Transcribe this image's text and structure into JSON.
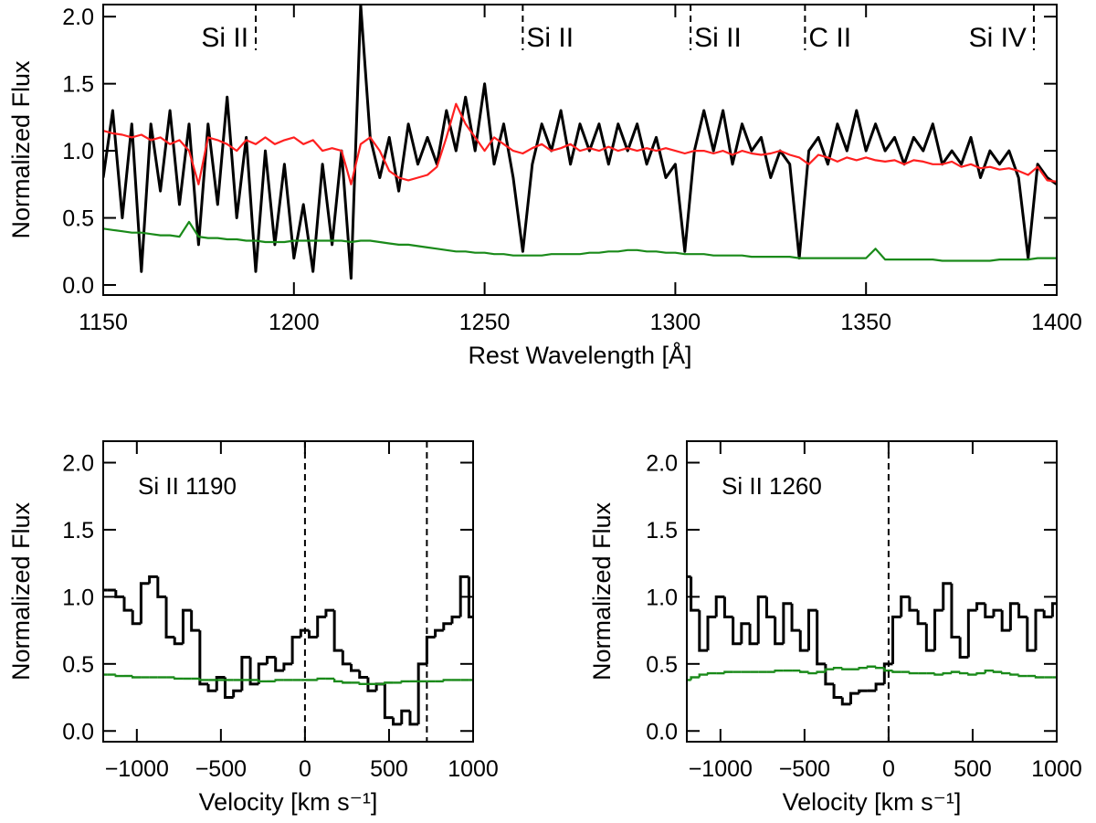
{
  "chart_data": [
    {
      "type": "line",
      "y_label": "Normalized Flux",
      "x_label": "Rest Wavelength [Å]",
      "xlim": [
        1150,
        1400
      ],
      "xticks": [
        1150,
        1200,
        1250,
        1300,
        1350,
        1400
      ],
      "ylim": [
        -0.075,
        2.09
      ],
      "yticks": [
        {
          "value": 0,
          "label": "0.0"
        },
        {
          "value": 0.5,
          "label": "0.5"
        },
        {
          "value": 1,
          "label": "1.0"
        },
        {
          "value": 1.5,
          "label": "1.5"
        },
        {
          "value": 2,
          "label": "2.0"
        }
      ],
      "lines": [
        {
          "x": 1190,
          "label": "Si II",
          "align": "left"
        },
        {
          "x": 1260,
          "label": "Si II",
          "align": "right"
        },
        {
          "x": 1304,
          "label": "Si II",
          "align": "right"
        },
        {
          "x": 1334,
          "label": "C II",
          "align": "right"
        },
        {
          "x": 1394,
          "label": "Si IV",
          "align": "left"
        }
      ],
      "x": [
        1150,
        1152.5,
        1155,
        1157.5,
        1160,
        1162.5,
        1165,
        1167.5,
        1170,
        1172.5,
        1175,
        1177.5,
        1180,
        1182.5,
        1185,
        1187.5,
        1190,
        1192.5,
        1195,
        1197.5,
        1200,
        1202.5,
        1205,
        1207.5,
        1210,
        1212.5,
        1215,
        1217.5,
        1220,
        1222.5,
        1225,
        1227.5,
        1230,
        1232.5,
        1235,
        1237.5,
        1240,
        1242.5,
        1245,
        1247.5,
        1250,
        1252.5,
        1255,
        1257.5,
        1260,
        1262.5,
        1265,
        1267.5,
        1270,
        1272.5,
        1275,
        1277.5,
        1280,
        1282.5,
        1285,
        1287.5,
        1290,
        1292.5,
        1295,
        1297.5,
        1300,
        1302.5,
        1305,
        1307.5,
        1310,
        1312.5,
        1315,
        1317.5,
        1320,
        1322.5,
        1325,
        1327.5,
        1330,
        1332.5,
        1335,
        1337.5,
        1340,
        1342.5,
        1345,
        1347.5,
        1350,
        1352.5,
        1355,
        1357.5,
        1360,
        1362.5,
        1365,
        1367.5,
        1370,
        1372.5,
        1375,
        1377.5,
        1380,
        1382.5,
        1385,
        1387.5,
        1390,
        1392.5,
        1395,
        1397.5,
        1400
      ],
      "series": [
        {
          "color": "#000000",
          "values": [
            0.8,
            1.3,
            0.5,
            1.2,
            0.1,
            1.2,
            0.7,
            1.3,
            0.6,
            1.2,
            0.3,
            1.2,
            0.6,
            1.4,
            0.5,
            1.1,
            0.1,
            1.0,
            0.3,
            0.9,
            0.2,
            0.6,
            0.1,
            0.9,
            0.3,
            1.0,
            0.05,
            2.09,
            1.1,
            0.8,
            1.1,
            0.7,
            1.2,
            0.9,
            1.1,
            0.9,
            1.3,
            1.0,
            1.4,
            1.0,
            1.5,
            0.9,
            1.2,
            0.8,
            0.25,
            0.9,
            1.2,
            1.0,
            1.3,
            0.9,
            1.2,
            1.0,
            1.2,
            0.9,
            1.2,
            1.0,
            1.2,
            0.9,
            1.1,
            0.8,
            0.9,
            0.25,
            1.0,
            1.3,
            1.0,
            1.3,
            0.9,
            1.2,
            1.0,
            1.1,
            0.8,
            1.0,
            0.9,
            0.2,
            1.0,
            1.1,
            0.9,
            1.2,
            1.0,
            1.3,
            1.0,
            1.2,
            1.0,
            1.1,
            0.9,
            1.1,
            1.0,
            1.2,
            0.9,
            1.0,
            0.9,
            1.1,
            0.8,
            1.0,
            0.9,
            1.0,
            0.8,
            0.2,
            0.9,
            0.8,
            0.75
          ]
        },
        {
          "color": "#ff2020",
          "values": [
            1.15,
            1.13,
            1.12,
            1.1,
            1.12,
            1.08,
            1.1,
            1.05,
            1.08,
            1.0,
            0.75,
            1.1,
            1.08,
            1.05,
            1.0,
            1.08,
            1.05,
            1.1,
            1.05,
            1.08,
            1.1,
            1.05,
            1.08,
            1.0,
            1.02,
            1.0,
            0.75,
            1.05,
            1.1,
            1.0,
            0.85,
            0.8,
            0.78,
            0.8,
            0.82,
            0.88,
            1.1,
            1.35,
            1.2,
            1.1,
            1.0,
            1.1,
            1.05,
            1.0,
            0.98,
            1.02,
            1.05,
            1.0,
            1.02,
            1.05,
            1.0,
            1.02,
            1.0,
            1.03,
            1.0,
            1.02,
            1.0,
            1.02,
            1.0,
            1.02,
            1.0,
            0.98,
            1.0,
            1.0,
            0.98,
            1.0,
            0.97,
            1.0,
            0.98,
            0.97,
            0.98,
            1.0,
            0.97,
            0.95,
            0.9,
            0.97,
            0.95,
            0.92,
            0.95,
            0.93,
            0.95,
            0.93,
            0.92,
            0.93,
            0.9,
            0.93,
            0.92,
            0.9,
            0.9,
            0.92,
            0.88,
            0.9,
            0.87,
            0.88,
            0.86,
            0.87,
            0.85,
            0.82,
            0.88,
            0.78,
            0.77
          ]
        },
        {
          "color": "#1a8a1a",
          "values": [
            0.42,
            0.41,
            0.4,
            0.39,
            0.39,
            0.38,
            0.37,
            0.37,
            0.36,
            0.47,
            0.36,
            0.35,
            0.35,
            0.34,
            0.34,
            0.33,
            0.33,
            0.32,
            0.32,
            0.32,
            0.33,
            0.33,
            0.33,
            0.33,
            0.33,
            0.33,
            0.32,
            0.33,
            0.33,
            0.32,
            0.31,
            0.3,
            0.3,
            0.29,
            0.28,
            0.27,
            0.26,
            0.25,
            0.25,
            0.24,
            0.24,
            0.23,
            0.23,
            0.22,
            0.22,
            0.22,
            0.22,
            0.23,
            0.23,
            0.23,
            0.23,
            0.24,
            0.24,
            0.25,
            0.25,
            0.26,
            0.26,
            0.25,
            0.25,
            0.24,
            0.24,
            0.23,
            0.23,
            0.23,
            0.22,
            0.22,
            0.22,
            0.22,
            0.21,
            0.21,
            0.21,
            0.21,
            0.21,
            0.2,
            0.2,
            0.2,
            0.2,
            0.2,
            0.2,
            0.2,
            0.2,
            0.27,
            0.19,
            0.19,
            0.19,
            0.19,
            0.19,
            0.19,
            0.18,
            0.18,
            0.18,
            0.18,
            0.18,
            0.18,
            0.19,
            0.19,
            0.19,
            0.19,
            0.2,
            0.2,
            0.2
          ]
        }
      ]
    },
    {
      "type": "step",
      "y_label": "Normalized Flux",
      "x_label": "Velocity [km s⁻¹]",
      "annotation": "Si II 1190",
      "xlim": [
        -1200,
        1000
      ],
      "xticks": [
        {
          "value": -1000,
          "label": "−1000"
        },
        {
          "value": -500,
          "label": "−500"
        },
        0,
        500,
        1000
      ],
      "ylim": [
        -0.08,
        2.16
      ],
      "yticks": [
        {
          "value": 0,
          "label": "0.0"
        },
        {
          "value": 0.5,
          "label": "0.5"
        },
        {
          "value": 1,
          "label": "1.0"
        },
        {
          "value": 1.5,
          "label": "1.5"
        },
        {
          "value": 2,
          "label": "2.0"
        }
      ],
      "vlines": [
        0,
        725
      ],
      "x": [
        -1200,
        -1150,
        -1100,
        -1050,
        -1000,
        -950,
        -900,
        -850,
        -800,
        -750,
        -700,
        -650,
        -600,
        -550,
        -500,
        -450,
        -400,
        -350,
        -300,
        -250,
        -200,
        -150,
        -100,
        -50,
        0,
        50,
        100,
        150,
        200,
        250,
        300,
        350,
        400,
        450,
        500,
        550,
        600,
        650,
        700,
        750,
        800,
        850,
        900,
        950,
        1000
      ],
      "series": [
        {
          "color": "#000000",
          "values": [
            1.05,
            1.05,
            1.0,
            0.9,
            0.8,
            1.1,
            1.15,
            1.0,
            0.7,
            0.65,
            0.9,
            0.75,
            0.35,
            0.3,
            0.4,
            0.25,
            0.3,
            0.55,
            0.35,
            0.5,
            0.55,
            0.45,
            0.5,
            0.7,
            0.75,
            0.7,
            0.85,
            0.9,
            0.6,
            0.5,
            0.45,
            0.4,
            0.3,
            0.35,
            0.1,
            0.05,
            0.15,
            0.05,
            0.5,
            0.7,
            0.75,
            0.8,
            0.85,
            1.15,
            0.85
          ]
        },
        {
          "color": "#1a8a1a",
          "values": [
            0.42,
            0.42,
            0.41,
            0.41,
            0.4,
            0.4,
            0.4,
            0.4,
            0.4,
            0.39,
            0.39,
            0.39,
            0.38,
            0.38,
            0.38,
            0.38,
            0.38,
            0.38,
            0.38,
            0.37,
            0.37,
            0.38,
            0.38,
            0.38,
            0.38,
            0.38,
            0.39,
            0.39,
            0.37,
            0.36,
            0.36,
            0.35,
            0.35,
            0.35,
            0.36,
            0.36,
            0.37,
            0.37,
            0.37,
            0.37,
            0.37,
            0.38,
            0.38,
            0.38,
            0.38
          ]
        }
      ]
    },
    {
      "type": "step",
      "y_label": "Normalized Flux",
      "x_label": "Velocity [km s⁻¹]",
      "annotation": "Si II 1260",
      "xlim": [
        -1200,
        1000
      ],
      "xticks": [
        {
          "value": -1000,
          "label": "−1000"
        },
        {
          "value": -500,
          "label": "−500"
        },
        0,
        500,
        1000
      ],
      "ylim": [
        -0.08,
        2.16
      ],
      "yticks": [
        {
          "value": 0,
          "label": "0.0"
        },
        {
          "value": 0.5,
          "label": "0.5"
        },
        {
          "value": 1,
          "label": "1.0"
        },
        {
          "value": 1.5,
          "label": "1.5"
        },
        {
          "value": 2,
          "label": "2.0"
        }
      ],
      "vlines": [
        0
      ],
      "x": [
        -1200,
        -1150,
        -1100,
        -1050,
        -1000,
        -950,
        -900,
        -850,
        -800,
        -750,
        -700,
        -650,
        -600,
        -550,
        -500,
        -450,
        -400,
        -350,
        -300,
        -250,
        -200,
        -150,
        -100,
        -50,
        0,
        50,
        100,
        150,
        200,
        250,
        300,
        350,
        400,
        450,
        500,
        550,
        600,
        650,
        700,
        750,
        800,
        850,
        900,
        950,
        1000
      ],
      "series": [
        {
          "color": "#000000",
          "values": [
            1.15,
            0.9,
            0.6,
            0.85,
            1.0,
            0.85,
            0.65,
            0.8,
            0.65,
            1.0,
            0.85,
            0.65,
            0.95,
            0.75,
            0.6,
            0.9,
            0.5,
            0.35,
            0.25,
            0.2,
            0.28,
            0.3,
            0.3,
            0.35,
            0.5,
            0.85,
            1.0,
            0.9,
            0.8,
            0.6,
            0.9,
            1.1,
            0.7,
            0.55,
            0.9,
            0.95,
            0.85,
            0.9,
            0.75,
            0.95,
            0.85,
            0.6,
            0.9,
            0.85,
            0.95
          ]
        },
        {
          "color": "#1a8a1a",
          "values": [
            0.38,
            0.4,
            0.42,
            0.43,
            0.43,
            0.44,
            0.44,
            0.44,
            0.44,
            0.44,
            0.44,
            0.45,
            0.45,
            0.45,
            0.44,
            0.43,
            0.44,
            0.46,
            0.47,
            0.46,
            0.46,
            0.47,
            0.48,
            0.47,
            0.45,
            0.44,
            0.44,
            0.43,
            0.43,
            0.43,
            0.42,
            0.43,
            0.44,
            0.43,
            0.42,
            0.43,
            0.45,
            0.44,
            0.43,
            0.42,
            0.41,
            0.41,
            0.4,
            0.4,
            0.4
          ]
        }
      ]
    }
  ]
}
